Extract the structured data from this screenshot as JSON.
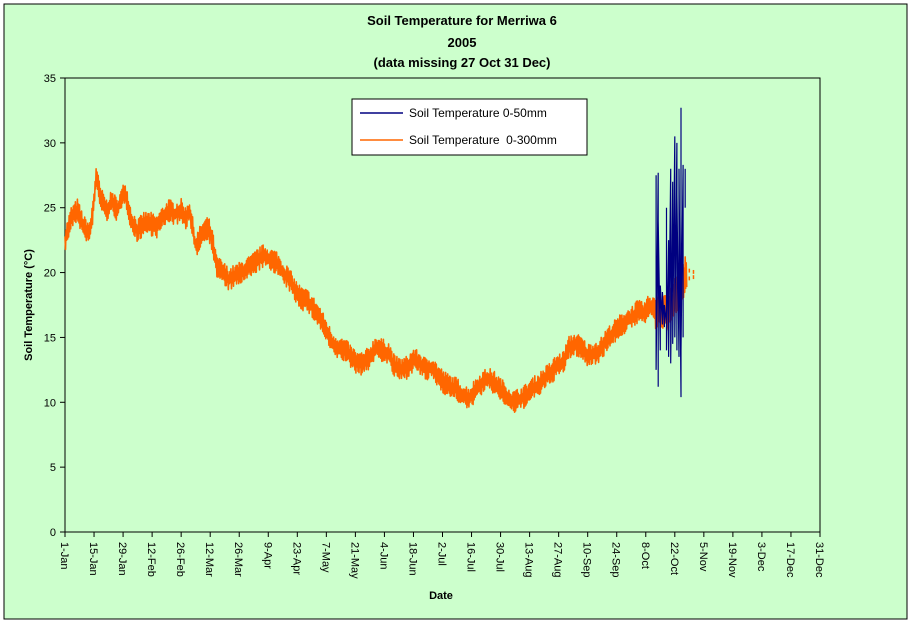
{
  "colors": {
    "chart_area": "#ccffcc",
    "plot_area": "#ccffcc",
    "border": "#000000",
    "series_0_50": "#000080",
    "series_0_300": "#ff6600"
  },
  "chart_data": {
    "type": "line",
    "title": [
      "Soil Temperature for Merriwa 6",
      "2005",
      "(data missing 27 Oct 31 Dec)"
    ],
    "xlabel": "Date",
    "ylabel": "Soil Temperature (°C)",
    "ylim": [
      0,
      35
    ],
    "yticks": [
      0,
      5,
      10,
      15,
      20,
      25,
      30,
      35
    ],
    "xlim": [
      "2005-01-01",
      "2005-12-31"
    ],
    "xticks": [
      "1-Jan",
      "15-Jan",
      "29-Jan",
      "12-Feb",
      "26-Feb",
      "12-Mar",
      "26-Mar",
      "9-Apr",
      "23-Apr",
      "7-May",
      "21-May",
      "4-Jun",
      "18-Jun",
      "2-Jul",
      "16-Jul",
      "30-Jul",
      "13-Aug",
      "27-Aug",
      "10-Sep",
      "24-Sep",
      "8-Oct",
      "22-Oct",
      "5-Nov",
      "19-Nov",
      "3-Dec",
      "17-Dec",
      "31-Dec"
    ],
    "grid": false,
    "legend_position": "top-center",
    "series": [
      {
        "name": "Soil Temperature 0-50mm",
        "color": "#000080",
        "points": [
          [
            "2005-10-13",
            17.0
          ],
          [
            "2005-10-13",
            27.5
          ],
          [
            "2005-10-13",
            12.5
          ],
          [
            "2005-10-14",
            27.7
          ],
          [
            "2005-10-14",
            11.2
          ],
          [
            "2005-10-14",
            24.0
          ],
          [
            "2005-10-15",
            14.0
          ],
          [
            "2005-10-15",
            19.0
          ],
          [
            "2005-10-16",
            16.0
          ],
          [
            "2005-10-16",
            18.5
          ],
          [
            "2005-10-17",
            15.8
          ],
          [
            "2005-10-17",
            17.5
          ],
          [
            "2005-10-18",
            16.0
          ],
          [
            "2005-10-18",
            25.0
          ],
          [
            "2005-10-18",
            14.0
          ],
          [
            "2005-10-19",
            22.5
          ],
          [
            "2005-10-19",
            13.5
          ],
          [
            "2005-10-20",
            28.0
          ],
          [
            "2005-10-20",
            13.0
          ],
          [
            "2005-10-21",
            27.0
          ],
          [
            "2005-10-21",
            14.5
          ],
          [
            "2005-10-22",
            30.5
          ],
          [
            "2005-10-22",
            15.0
          ],
          [
            "2005-10-23",
            30.0
          ],
          [
            "2005-10-23",
            14.0
          ],
          [
            "2005-10-23",
            26.0
          ],
          [
            "2005-10-24",
            13.5
          ],
          [
            "2005-10-24",
            28.0
          ],
          [
            "2005-10-25",
            10.4
          ],
          [
            "2005-10-25",
            32.7
          ],
          [
            "2005-10-25",
            14.0
          ],
          [
            "2005-10-26",
            28.3
          ],
          [
            "2005-10-26",
            15.0
          ],
          [
            "2005-10-26",
            26.5
          ]
        ]
      },
      {
        "name": "Soil Temperature  0-300mm",
        "color": "#ff6600",
        "daily": [
          [
            1,
            22.5
          ],
          [
            4,
            24.2
          ],
          [
            7,
            24.8
          ],
          [
            10,
            23.5
          ],
          [
            13,
            23.0
          ],
          [
            15,
            25.5
          ],
          [
            16,
            27.5
          ],
          [
            18,
            25.8
          ],
          [
            21,
            24.8
          ],
          [
            24,
            25.5
          ],
          [
            26,
            24.8
          ],
          [
            28,
            25.5
          ],
          [
            30,
            26.3
          ],
          [
            33,
            24.0
          ],
          [
            36,
            23.2
          ],
          [
            39,
            23.8
          ],
          [
            42,
            23.8
          ],
          [
            45,
            23.5
          ],
          [
            48,
            24.2
          ],
          [
            51,
            24.8
          ],
          [
            54,
            24.5
          ],
          [
            57,
            24.8
          ],
          [
            59,
            24.2
          ],
          [
            61,
            24.8
          ],
          [
            64,
            22.0
          ],
          [
            67,
            23.0
          ],
          [
            70,
            23.5
          ],
          [
            72,
            22.5
          ],
          [
            74,
            20.5
          ],
          [
            77,
            20.0
          ],
          [
            80,
            19.5
          ],
          [
            84,
            19.8
          ],
          [
            88,
            20.2
          ],
          [
            91,
            20.5
          ],
          [
            94,
            21.0
          ],
          [
            97,
            21.3
          ],
          [
            100,
            21.0
          ],
          [
            103,
            20.8
          ],
          [
            106,
            20.0
          ],
          [
            109,
            19.5
          ],
          [
            112,
            18.6
          ],
          [
            115,
            18.0
          ],
          [
            118,
            17.8
          ],
          [
            121,
            17.2
          ],
          [
            124,
            16.5
          ],
          [
            127,
            15.5
          ],
          [
            130,
            14.5
          ],
          [
            133,
            14.2
          ],
          [
            136,
            14.0
          ],
          [
            139,
            13.5
          ],
          [
            142,
            13.0
          ],
          [
            145,
            13.0
          ],
          [
            148,
            13.5
          ],
          [
            151,
            14.3
          ],
          [
            154,
            14.0
          ],
          [
            157,
            13.8
          ],
          [
            160,
            12.7
          ],
          [
            163,
            12.5
          ],
          [
            166,
            12.7
          ],
          [
            169,
            13.3
          ],
          [
            172,
            13.0
          ],
          [
            175,
            12.5
          ],
          [
            178,
            12.7
          ],
          [
            181,
            12.0
          ],
          [
            184,
            11.5
          ],
          [
            187,
            11.2
          ],
          [
            190,
            11.0
          ],
          [
            193,
            10.5
          ],
          [
            196,
            10.3
          ],
          [
            199,
            11.0
          ],
          [
            202,
            11.5
          ],
          [
            205,
            11.8
          ],
          [
            208,
            11.5
          ],
          [
            211,
            11.0
          ],
          [
            214,
            10.5
          ],
          [
            217,
            10.0
          ],
          [
            220,
            10.2
          ],
          [
            223,
            10.5
          ],
          [
            226,
            11.0
          ],
          [
            229,
            11.3
          ],
          [
            232,
            11.8
          ],
          [
            235,
            12.2
          ],
          [
            238,
            12.8
          ],
          [
            241,
            13.0
          ],
          [
            244,
            14.2
          ],
          [
            247,
            14.5
          ],
          [
            250,
            14.2
          ],
          [
            253,
            13.6
          ],
          [
            256,
            13.8
          ],
          [
            259,
            14.0
          ],
          [
            262,
            14.8
          ],
          [
            265,
            15.3
          ],
          [
            268,
            15.8
          ],
          [
            271,
            16.2
          ],
          [
            274,
            16.5
          ],
          [
            277,
            17.0
          ],
          [
            280,
            16.8
          ],
          [
            283,
            17.5
          ],
          [
            286,
            17.0
          ],
          [
            289,
            17.2
          ],
          [
            292,
            17.0
          ],
          [
            294,
            17.5
          ],
          [
            296,
            18.5
          ],
          [
            298,
            19.0
          ],
          [
            299,
            19.5
          ],
          [
            300,
            20.0
          ],
          [
            301,
            19.8
          ]
        ]
      }
    ]
  }
}
